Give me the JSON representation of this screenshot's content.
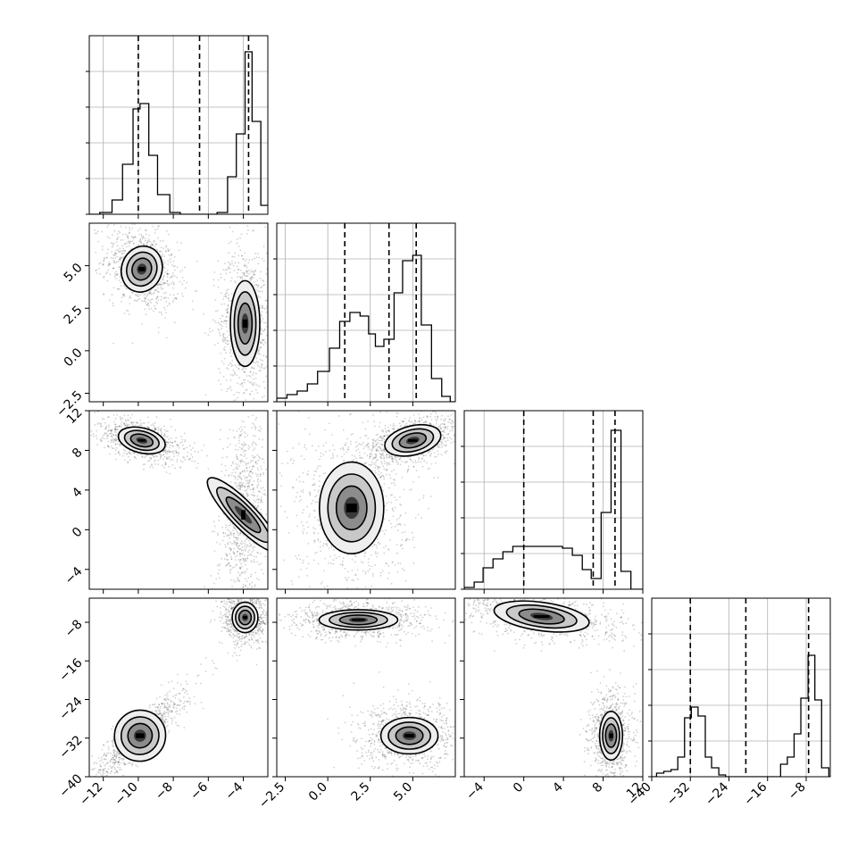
{
  "chart_data": {
    "type": "corner",
    "grid": true,
    "parameters": [
      {
        "name": "",
        "range": [
          -12.8,
          -2.6
        ],
        "ticks": [
          -12,
          -10,
          -8,
          -6,
          -4
        ],
        "tick_labels": [
          "−12",
          "−10",
          "−8",
          "−6",
          "−4"
        ],
        "quantiles": [
          -10.0,
          -6.5,
          -3.7
        ],
        "hist_y_max": 1.0,
        "hist_bins": [
          [
            -12.8,
            -12.2,
            0.0
          ],
          [
            -12.2,
            -11.5,
            0.01
          ],
          [
            -11.5,
            -10.9,
            0.08
          ],
          [
            -10.9,
            -10.3,
            0.28
          ],
          [
            -10.3,
            -9.9,
            0.59
          ],
          [
            -9.9,
            -9.4,
            0.62
          ],
          [
            -9.4,
            -8.9,
            0.33
          ],
          [
            -8.9,
            -8.2,
            0.11
          ],
          [
            -8.2,
            -7.6,
            0.01
          ],
          [
            -7.6,
            -5.5,
            0.0
          ],
          [
            -5.5,
            -4.9,
            0.01
          ],
          [
            -4.9,
            -4.4,
            0.21
          ],
          [
            -4.4,
            -3.9,
            0.45
          ],
          [
            -3.9,
            -3.5,
            0.91
          ],
          [
            -3.5,
            -3.0,
            0.52
          ],
          [
            -3.0,
            -2.6,
            0.05
          ]
        ]
      },
      {
        "name": "",
        "range": [
          -3.0,
          7.5
        ],
        "ticks": [
          -2.5,
          0.0,
          2.5,
          5.0
        ],
        "tick_labels": [
          "−2.5",
          "0.0",
          "2.5",
          "5.0"
        ],
        "quantiles": [
          1.0,
          3.6,
          5.2
        ],
        "hist_y_max": 1.0,
        "hist_bins": [
          [
            -3.0,
            -2.4,
            0.02
          ],
          [
            -2.4,
            -1.8,
            0.04
          ],
          [
            -1.8,
            -1.2,
            0.06
          ],
          [
            -1.2,
            -0.6,
            0.1
          ],
          [
            -0.6,
            0.1,
            0.17
          ],
          [
            0.1,
            0.7,
            0.3
          ],
          [
            0.7,
            1.3,
            0.45
          ],
          [
            1.3,
            1.9,
            0.5
          ],
          [
            1.9,
            2.4,
            0.48
          ],
          [
            2.4,
            2.8,
            0.38
          ],
          [
            2.8,
            3.3,
            0.31
          ],
          [
            3.3,
            3.9,
            0.35
          ],
          [
            3.9,
            4.4,
            0.61
          ],
          [
            4.4,
            5.0,
            0.79
          ],
          [
            5.0,
            5.5,
            0.82
          ],
          [
            5.5,
            6.1,
            0.43
          ],
          [
            6.1,
            6.7,
            0.13
          ],
          [
            6.7,
            7.2,
            0.03
          ],
          [
            7.2,
            7.5,
            0.0
          ]
        ]
      },
      {
        "name": "",
        "range": [
          -6.0,
          12.0
        ],
        "ticks": [
          -4,
          0,
          4,
          8,
          12
        ],
        "tick_labels": [
          "−4",
          "0",
          "4",
          "8",
          "12"
        ],
        "quantiles": [
          0.0,
          7.0,
          9.2
        ],
        "hist_y_max": 1.0,
        "hist_bins": [
          [
            -6.0,
            -5.0,
            0.01
          ],
          [
            -5.0,
            -4.1,
            0.04
          ],
          [
            -4.1,
            -3.1,
            0.12
          ],
          [
            -3.1,
            -2.1,
            0.17
          ],
          [
            -2.1,
            -1.1,
            0.21
          ],
          [
            -1.1,
            0.0,
            0.24
          ],
          [
            0.0,
            1.0,
            0.24
          ],
          [
            1.0,
            2.0,
            0.24
          ],
          [
            2.0,
            2.9,
            0.24
          ],
          [
            2.9,
            3.9,
            0.24
          ],
          [
            3.9,
            4.9,
            0.23
          ],
          [
            4.9,
            5.9,
            0.19
          ],
          [
            5.9,
            6.8,
            0.11
          ],
          [
            6.8,
            7.8,
            0.06
          ],
          [
            7.8,
            8.8,
            0.43
          ],
          [
            8.8,
            9.8,
            0.89
          ],
          [
            9.8,
            10.8,
            0.1
          ],
          [
            10.8,
            12.0,
            0.0
          ]
        ]
      },
      {
        "name": "",
        "range": [
          -40.0,
          -3.0
        ],
        "ticks": [
          -40,
          -32,
          -24,
          -16,
          -8
        ],
        "tick_labels": [
          "−40",
          "−32",
          "−24",
          "−16",
          "−8"
        ],
        "quantiles": [
          -32.0,
          -20.5,
          -7.5
        ],
        "hist_y_max": 1.0,
        "hist_bins": [
          [
            -40.0,
            -39.0,
            0.0
          ],
          [
            -39.0,
            -37.5,
            0.02
          ],
          [
            -37.5,
            -36.0,
            0.03
          ],
          [
            -36.0,
            -34.6,
            0.04
          ],
          [
            -34.6,
            -33.2,
            0.11
          ],
          [
            -33.2,
            -31.8,
            0.33
          ],
          [
            -31.8,
            -30.4,
            0.39
          ],
          [
            -30.4,
            -28.9,
            0.34
          ],
          [
            -28.9,
            -27.6,
            0.11
          ],
          [
            -27.6,
            -26.1,
            0.05
          ],
          [
            -26.1,
            -24.7,
            0.01
          ],
          [
            -24.7,
            -13.3,
            0.0
          ],
          [
            -13.3,
            -11.9,
            0.07
          ],
          [
            -11.9,
            -10.5,
            0.11
          ],
          [
            -10.5,
            -9.1,
            0.24
          ],
          [
            -9.1,
            -7.6,
            0.44
          ],
          [
            -7.6,
            -6.2,
            0.68
          ],
          [
            -6.2,
            -4.8,
            0.43
          ],
          [
            -4.8,
            -3.3,
            0.05
          ],
          [
            -3.3,
            -3.0,
            0.0
          ]
        ]
      }
    ],
    "panels_2d": [
      {
        "x": 0,
        "y": 1,
        "modes": [
          {
            "cx": -9.8,
            "cy": 4.8,
            "sx": 0.55,
            "sy": 0.65,
            "rho": -0.3,
            "w": 0.5
          },
          {
            "cx": -3.9,
            "cy": 1.6,
            "sx": 0.4,
            "sy": 1.2,
            "rho": 0.0,
            "w": 0.5
          }
        ]
      },
      {
        "x": 0,
        "y": 2,
        "modes": [
          {
            "cx": -9.8,
            "cy": 9.0,
            "sx": 0.65,
            "sy": 0.6,
            "rho": -0.5,
            "w": 0.5
          },
          {
            "cx": -4.0,
            "cy": 1.5,
            "sx": 0.35,
            "sy": 2.4,
            "rho": 0.2,
            "w": 0.5
          }
        ]
      },
      {
        "x": 0,
        "y": 3,
        "modes": [
          {
            "cx": -3.9,
            "cy": -7.0,
            "sx": 0.35,
            "sy": 1.5,
            "rho": 0.0,
            "w": 0.5
          },
          {
            "cx": -9.9,
            "cy": -31.5,
            "sx": 0.7,
            "sy": 2.5,
            "rho": 0.9,
            "w": 0.5
          }
        ]
      },
      {
        "x": 1,
        "y": 2,
        "modes": [
          {
            "cx": 5.0,
            "cy": 9.0,
            "sx": 0.8,
            "sy": 0.7,
            "rho": 0.5,
            "w": 0.5
          },
          {
            "cx": 1.4,
            "cy": 2.2,
            "sx": 0.9,
            "sy": 2.2,
            "rho": 0.0,
            "w": 0.5
          }
        ]
      },
      {
        "x": 1,
        "y": 3,
        "modes": [
          {
            "cx": 1.8,
            "cy": -7.5,
            "sx": 1.1,
            "sy": 1.0,
            "rho": 0.0,
            "w": 0.5
          },
          {
            "cx": 4.8,
            "cy": -31.5,
            "sx": 0.8,
            "sy": 1.8,
            "rho": 0.0,
            "w": 0.5
          }
        ]
      },
      {
        "x": 2,
        "y": 3,
        "modes": [
          {
            "cx": 1.8,
            "cy": -6.8,
            "sx": 2.3,
            "sy": 1.4,
            "rho": -0.5,
            "w": 0.5
          },
          {
            "cx": 8.8,
            "cy": -31.5,
            "sx": 0.55,
            "sy": 2.4,
            "rho": 0.0,
            "w": 0.5
          }
        ]
      }
    ]
  }
}
